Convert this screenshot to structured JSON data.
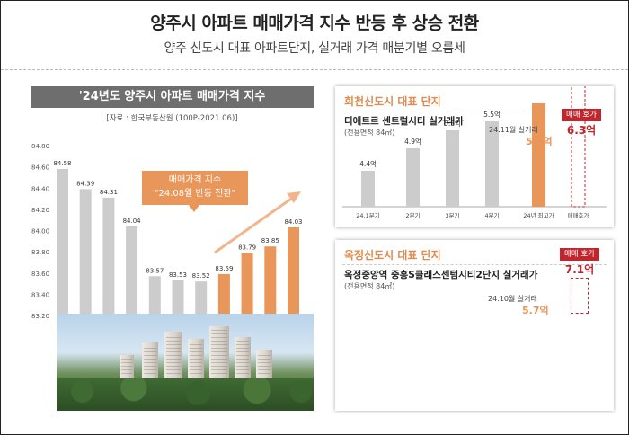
{
  "header": {
    "title": "양주시 아파트 매매가격 지수 반등 후 상승 전환",
    "subtitle": "양주 신도시 대표 아파트단지, 실거래 가격 매분기별 오름세"
  },
  "index_panel": {
    "title": "'24년도 양주시 아파트 매매가격 지수",
    "source": "[자료 : 한국부동산원 (100P-2021.06)]",
    "callout_line1": "매매가격 지수",
    "callout_line2": "\"24.08월 반등 전환\""
  },
  "panel_hoecheon": {
    "title": "회천신도시 대표 단지",
    "complex": "디에트르 센트럴시티 실거래가",
    "area": "(전용면적 84㎡)",
    "latest_label": "24.11월 실거래",
    "latest_value": "5.9억",
    "ask_tag": "매매 호가",
    "ask_value": "6.3억"
  },
  "panel_okjeong": {
    "title": "옥정신도시 대표 단지",
    "complex": "옥정중앙역 중흥S클래스센텀시티2단지 실거래가",
    "area": "(전용면적 84㎡)",
    "latest_label": "24.10월 실거래",
    "latest_value": "5.7억",
    "ask_tag": "매매 호가",
    "ask_value": "7.1억"
  },
  "colors": {
    "gray_bar": "#cccccc",
    "orange_bar": "#e8965a",
    "red": "#c0262d"
  },
  "chart_data": [
    {
      "type": "bar",
      "title": "'24년도 양주시 아파트 매매가격 지수",
      "y_ticks": [
        "84.80",
        "84.60",
        "84.40",
        "84.20",
        "84.00",
        "83.80",
        "83.60",
        "83.40",
        "83.20"
      ],
      "ylim": [
        83.2,
        84.8
      ],
      "values": [
        84.58,
        84.39,
        84.31,
        84.04,
        83.57,
        83.53,
        83.52,
        83.59,
        83.79,
        83.85,
        84.03
      ],
      "value_labels": [
        "84.58",
        "84.39",
        "84.31",
        "84.04",
        "83.57",
        "83.53",
        "83.52",
        "83.59",
        "83.79",
        "83.85",
        "84.03"
      ],
      "orange_from_index": 7
    },
    {
      "type": "bar",
      "title": "디에트르 센트럴시티 실거래가",
      "categories": [
        "24.1분기",
        "2분기",
        "3분기",
        "4분기",
        "24년 최고가",
        "매매호가"
      ],
      "values": [
        4.4,
        4.9,
        5.3,
        5.5,
        5.9,
        6.3
      ],
      "value_labels": [
        "4.4억",
        "4.9억",
        "5.3억",
        "5.5억",
        "",
        ""
      ],
      "colors_by_index": [
        "gray",
        "gray",
        "gray",
        "gray",
        "orange",
        "dashed"
      ]
    }
  ]
}
